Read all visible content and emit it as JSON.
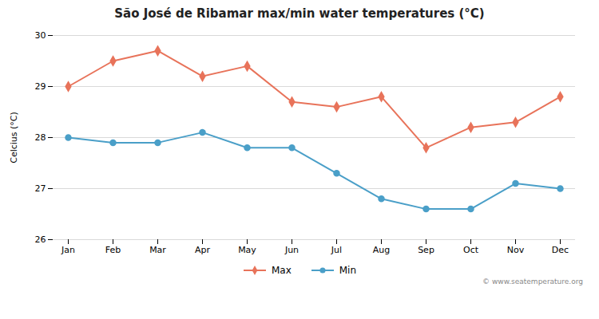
{
  "chart_data": {
    "type": "line",
    "title": "São José de Ribamar max/min water temperatures (°C)",
    "categories": [
      "Jan",
      "Feb",
      "Mar",
      "Apr",
      "May",
      "Jun",
      "Jul",
      "Aug",
      "Sep",
      "Oct",
      "Nov",
      "Dec"
    ],
    "series": [
      {
        "name": "Max",
        "color": "#e8735a",
        "marker": "diamond",
        "values": [
          29.0,
          29.5,
          29.7,
          29.2,
          29.4,
          28.7,
          28.6,
          28.8,
          27.8,
          28.2,
          28.3,
          28.8
        ]
      },
      {
        "name": "Min",
        "color": "#4a9fc8",
        "marker": "circle",
        "values": [
          28.0,
          27.9,
          27.9,
          28.1,
          27.8,
          27.8,
          27.3,
          26.8,
          26.6,
          26.6,
          27.1,
          27.0
        ]
      }
    ],
    "ylabel": "Celcius (°C)",
    "ylim": [
      26,
      30
    ],
    "yticks": [
      26,
      27,
      28,
      29,
      30
    ],
    "grid": true,
    "legend": "bottom",
    "annotations": [
      "© www.seatemperature.org"
    ]
  }
}
